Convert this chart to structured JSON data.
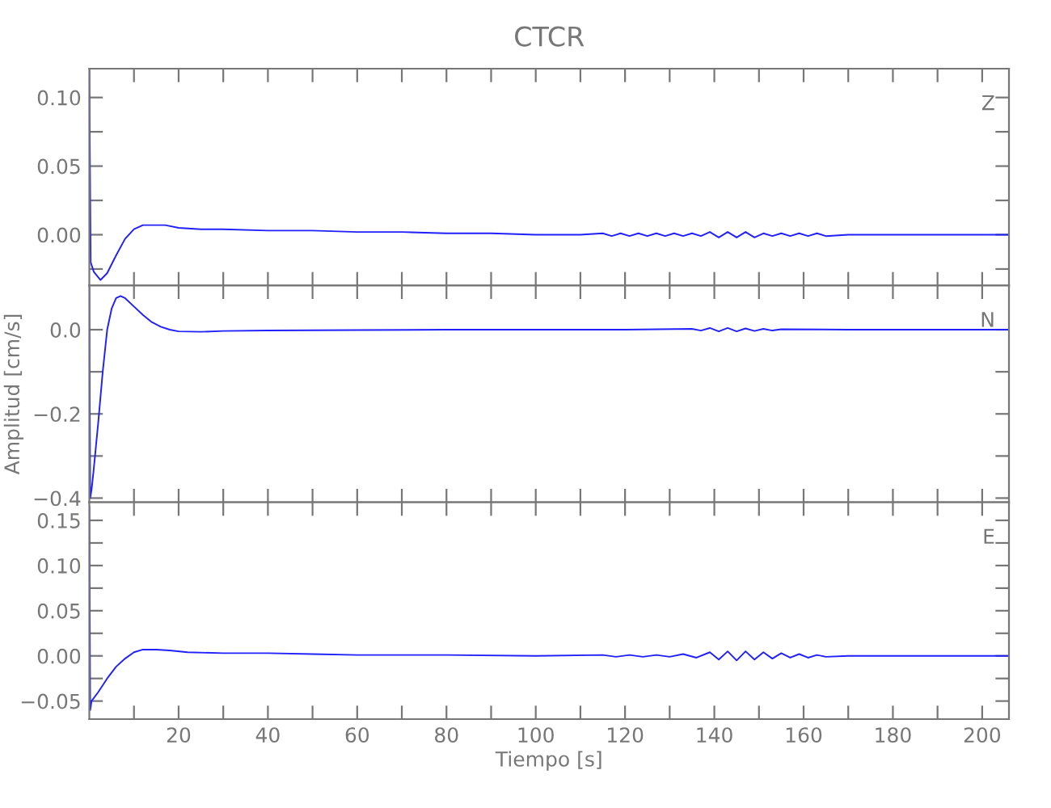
{
  "chart_data": [
    {
      "type": "line",
      "title": "CTCR",
      "annotations": [
        "Z"
      ],
      "tick_labels": "y",
      "color": "#2020ff",
      "x": [
        0,
        0.3,
        1,
        2.5,
        4,
        6,
        8,
        10,
        12,
        14,
        17,
        20,
        25,
        30,
        40,
        50,
        60,
        70,
        80,
        90,
        100,
        110,
        115,
        117,
        119,
        121,
        123,
        125,
        127,
        129,
        131,
        133,
        135,
        137,
        139,
        141,
        143,
        145,
        147,
        149,
        151,
        153,
        155,
        157,
        159,
        161,
        163,
        165,
        170,
        190,
        206
      ],
      "values": [
        0.12,
        -0.02,
        -0.027,
        -0.033,
        -0.028,
        -0.015,
        -0.003,
        0.004,
        0.007,
        0.007,
        0.007,
        0.005,
        0.004,
        0.004,
        0.003,
        0.003,
        0.002,
        0.002,
        0.001,
        0.001,
        0.0,
        0.0,
        0.001,
        -0.001,
        0.001,
        -0.001,
        0.001,
        -0.001,
        0.001,
        -0.001,
        0.001,
        -0.001,
        0.001,
        -0.001,
        0.002,
        -0.002,
        0.002,
        -0.002,
        0.002,
        -0.002,
        0.001,
        -0.001,
        0.001,
        -0.001,
        0.001,
        -0.001,
        0.001,
        -0.001,
        0.0,
        0.0,
        0.0
      ],
      "xlim": [
        0,
        206
      ],
      "ylim": [
        -0.037,
        0.121
      ],
      "xticks": [
        {
          "value": 10,
          "label": null
        },
        {
          "value": 20,
          "label": null
        },
        {
          "value": 30,
          "label": null
        },
        {
          "value": 40,
          "label": null
        },
        {
          "value": 50,
          "label": null
        },
        {
          "value": 60,
          "label": null
        },
        {
          "value": 70,
          "label": null
        },
        {
          "value": 80,
          "label": null
        },
        {
          "value": 90,
          "label": null
        },
        {
          "value": 100,
          "label": null
        },
        {
          "value": 110,
          "label": null
        },
        {
          "value": 120,
          "label": null
        },
        {
          "value": 130,
          "label": null
        },
        {
          "value": 140,
          "label": null
        },
        {
          "value": 150,
          "label": null
        },
        {
          "value": 160,
          "label": null
        },
        {
          "value": 170,
          "label": null
        },
        {
          "value": 180,
          "label": null
        },
        {
          "value": 190,
          "label": null
        },
        {
          "value": 200,
          "label": null
        }
      ],
      "yticks": [
        {
          "value": -0.025,
          "label": null
        },
        {
          "value": 0.0,
          "label": "0.00"
        },
        {
          "value": 0.025,
          "label": null
        },
        {
          "value": 0.05,
          "label": "0.05"
        },
        {
          "value": 0.075,
          "label": null
        },
        {
          "value": 0.1,
          "label": "0.10"
        }
      ]
    },
    {
      "type": "line",
      "ylabel": "Amplitud [cm/s]",
      "annotations": [
        "N"
      ],
      "tick_labels": "y",
      "color": "#2020ff",
      "x": [
        0,
        0.2,
        0.5,
        1,
        2,
        3,
        4,
        5,
        6,
        7,
        8,
        10,
        12,
        14,
        16,
        18,
        20,
        25,
        30,
        40,
        60,
        80,
        100,
        120,
        135,
        137,
        139,
        141,
        143,
        145,
        147,
        149,
        151,
        153,
        155,
        170,
        206
      ],
      "values": [
        0.1,
        -0.4,
        -0.38,
        -0.33,
        -0.22,
        -0.1,
        0.0,
        0.05,
        0.075,
        0.08,
        0.075,
        0.055,
        0.035,
        0.018,
        0.007,
        0.0,
        -0.004,
        -0.005,
        -0.003,
        -0.002,
        -0.001,
        0.0,
        0.0,
        0.0,
        0.002,
        -0.002,
        0.004,
        -0.004,
        0.004,
        -0.004,
        0.003,
        -0.003,
        0.002,
        -0.002,
        0.001,
        0.0,
        0.0
      ],
      "xlim": [
        0,
        206
      ],
      "ylim": [
        -0.41,
        0.105
      ],
      "xticks": [
        {
          "value": 10,
          "label": null
        },
        {
          "value": 20,
          "label": null
        },
        {
          "value": 30,
          "label": null
        },
        {
          "value": 40,
          "label": null
        },
        {
          "value": 50,
          "label": null
        },
        {
          "value": 60,
          "label": null
        },
        {
          "value": 70,
          "label": null
        },
        {
          "value": 80,
          "label": null
        },
        {
          "value": 90,
          "label": null
        },
        {
          "value": 100,
          "label": null
        },
        {
          "value": 110,
          "label": null
        },
        {
          "value": 120,
          "label": null
        },
        {
          "value": 130,
          "label": null
        },
        {
          "value": 140,
          "label": null
        },
        {
          "value": 150,
          "label": null
        },
        {
          "value": 160,
          "label": null
        },
        {
          "value": 170,
          "label": null
        },
        {
          "value": 180,
          "label": null
        },
        {
          "value": 190,
          "label": null
        },
        {
          "value": 200,
          "label": null
        }
      ],
      "yticks": [
        {
          "value": -0.4,
          "label": "−0.4"
        },
        {
          "value": -0.3,
          "label": null
        },
        {
          "value": -0.2,
          "label": "−0.2"
        },
        {
          "value": -0.1,
          "label": null
        },
        {
          "value": 0.0,
          "label": "0.0"
        }
      ]
    },
    {
      "type": "line",
      "xlabel": "Tiempo [s]",
      "annotations": [
        "E"
      ],
      "color": "#2020ff",
      "x": [
        0,
        0.2,
        0.5,
        2,
        4,
        6,
        8,
        10,
        12,
        15,
        18,
        22,
        30,
        40,
        50,
        60,
        80,
        100,
        115,
        118,
        121,
        124,
        127,
        130,
        133,
        136,
        139,
        141,
        143,
        145,
        147,
        149,
        151,
        153,
        155,
        157,
        159,
        161,
        163,
        165,
        170,
        190,
        206
      ],
      "values": [
        0.165,
        -0.06,
        -0.05,
        -0.04,
        -0.025,
        -0.012,
        -0.003,
        0.004,
        0.007,
        0.007,
        0.006,
        0.004,
        0.003,
        0.003,
        0.002,
        0.001,
        0.001,
        0.0,
        0.001,
        -0.001,
        0.001,
        -0.001,
        0.001,
        -0.001,
        0.002,
        -0.002,
        0.004,
        -0.004,
        0.005,
        -0.005,
        0.005,
        -0.004,
        0.004,
        -0.003,
        0.003,
        -0.002,
        0.002,
        -0.002,
        0.001,
        -0.001,
        0.0,
        0.0,
        0.0
      ],
      "xlim": [
        0,
        206
      ],
      "ylim": [
        -0.07,
        0.17
      ],
      "xticks": [
        {
          "value": 10,
          "label": null
        },
        {
          "value": 20,
          "label": "20"
        },
        {
          "value": 30,
          "label": null
        },
        {
          "value": 40,
          "label": "40"
        },
        {
          "value": 50,
          "label": null
        },
        {
          "value": 60,
          "label": "60"
        },
        {
          "value": 70,
          "label": null
        },
        {
          "value": 80,
          "label": "80"
        },
        {
          "value": 90,
          "label": null
        },
        {
          "value": 100,
          "label": "100"
        },
        {
          "value": 110,
          "label": null
        },
        {
          "value": 120,
          "label": "120"
        },
        {
          "value": 130,
          "label": null
        },
        {
          "value": 140,
          "label": "140"
        },
        {
          "value": 150,
          "label": null
        },
        {
          "value": 160,
          "label": "160"
        },
        {
          "value": 170,
          "label": null
        },
        {
          "value": 180,
          "label": "180"
        },
        {
          "value": 190,
          "label": null
        },
        {
          "value": 200,
          "label": "200"
        }
      ],
      "yticks": [
        {
          "value": -0.05,
          "label": "−0.05"
        },
        {
          "value": -0.025,
          "label": null
        },
        {
          "value": 0.0,
          "label": "0.00"
        },
        {
          "value": 0.025,
          "label": null
        },
        {
          "value": 0.05,
          "label": "0.05"
        },
        {
          "value": 0.075,
          "label": null
        },
        {
          "value": 0.1,
          "label": "0.10"
        },
        {
          "value": 0.125,
          "label": null
        },
        {
          "value": 0.15,
          "label": "0.15"
        }
      ]
    }
  ]
}
